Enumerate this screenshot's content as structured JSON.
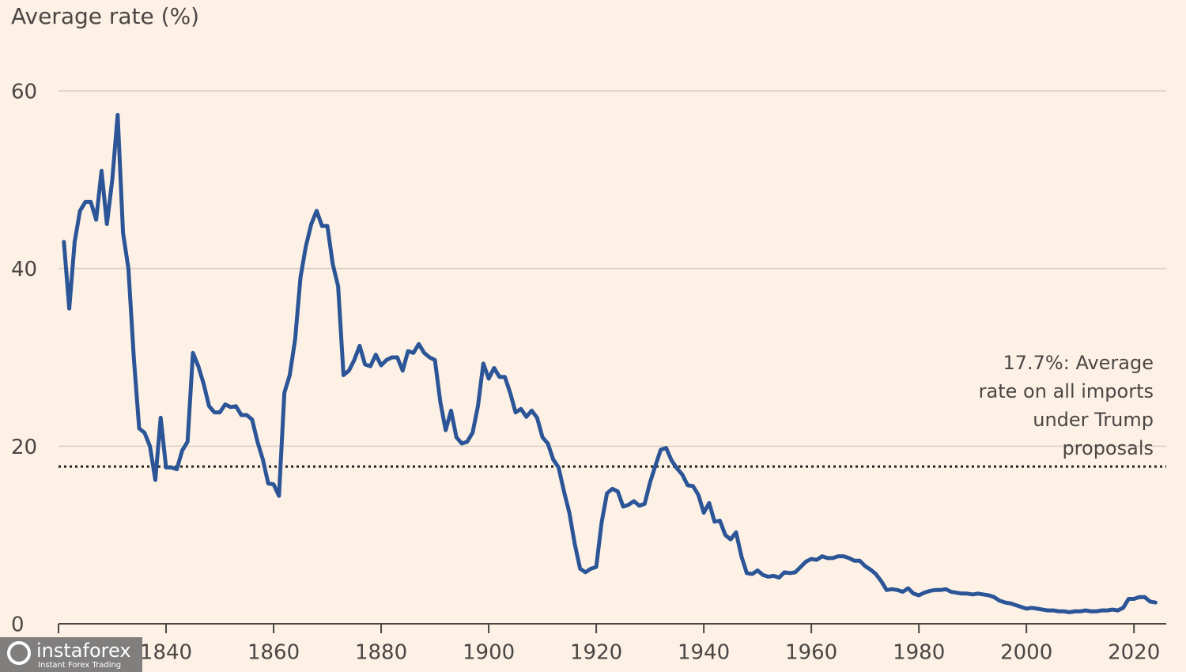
{
  "chart_data": {
    "type": "line",
    "title": "Average rate (%)",
    "x": [
      1821,
      1822,
      1823,
      1824,
      1825,
      1826,
      1827,
      1828,
      1829,
      1830,
      1831,
      1832,
      1833,
      1834,
      1835,
      1836,
      1837,
      1838,
      1839,
      1840,
      1841,
      1842,
      1843,
      1844,
      1845,
      1846,
      1847,
      1848,
      1849,
      1850,
      1851,
      1852,
      1853,
      1854,
      1855,
      1856,
      1857,
      1858,
      1859,
      1860,
      1861,
      1862,
      1863,
      1864,
      1865,
      1866,
      1867,
      1868,
      1869,
      1870,
      1871,
      1872,
      1873,
      1874,
      1875,
      1876,
      1877,
      1878,
      1879,
      1880,
      1881,
      1882,
      1883,
      1884,
      1885,
      1886,
      1887,
      1888,
      1889,
      1890,
      1891,
      1892,
      1893,
      1894,
      1895,
      1896,
      1897,
      1898,
      1899,
      1900,
      1901,
      1902,
      1903,
      1904,
      1905,
      1906,
      1907,
      1908,
      1909,
      1910,
      1911,
      1912,
      1913,
      1914,
      1915,
      1916,
      1917,
      1918,
      1919,
      1920,
      1921,
      1922,
      1923,
      1924,
      1925,
      1926,
      1927,
      1928,
      1929,
      1930,
      1931,
      1932,
      1933,
      1934,
      1935,
      1936,
      1937,
      1938,
      1939,
      1940,
      1941,
      1942,
      1943,
      1944,
      1945,
      1946,
      1947,
      1948,
      1949,
      1950,
      1951,
      1952,
      1953,
      1954,
      1955,
      1956,
      1957,
      1958,
      1959,
      1960,
      1961,
      1962,
      1963,
      1964,
      1965,
      1966,
      1967,
      1968,
      1969,
      1970,
      1971,
      1972,
      1973,
      1974,
      1975,
      1976,
      1977,
      1978,
      1979,
      1980,
      1981,
      1982,
      1983,
      1984,
      1985,
      1986,
      1987,
      1988,
      1989,
      1990,
      1991,
      1992,
      1993,
      1994,
      1995,
      1996,
      1997,
      1998,
      1999,
      2000,
      2001,
      2002,
      2003,
      2004,
      2005,
      2006,
      2007,
      2008,
      2009,
      2010,
      2011,
      2012,
      2013,
      2014,
      2015,
      2016,
      2017,
      2018,
      2019,
      2020,
      2021,
      2022,
      2023,
      2024
    ],
    "series": [
      {
        "color": "#2b5597",
        "values": [
          43,
          35.5,
          43,
          46.5,
          47.5,
          47.5,
          45.5,
          51,
          45,
          50,
          57.3,
          44,
          40,
          30,
          22,
          21.5,
          20,
          16.2,
          23.2,
          17.6,
          17.6,
          17.4,
          19.5,
          20.5,
          30.5,
          29,
          27,
          24.5,
          23.8,
          23.8,
          24.7,
          24.4,
          24.5,
          23.5,
          23.5,
          23,
          20.5,
          18.5,
          15.8,
          15.7,
          14.4,
          26,
          28,
          32,
          39,
          42.5,
          45,
          46.5,
          44.8,
          44.8,
          40.5,
          38,
          28,
          28.5,
          29.7,
          31.3,
          29.2,
          29,
          30.3,
          29.1,
          29.7,
          30,
          30,
          28.5,
          30.7,
          30.5,
          31.5,
          30.5,
          30,
          29.7,
          25,
          21.8,
          24,
          21,
          20.3,
          20.5,
          21.5,
          24.5,
          29.3,
          27.6,
          28.8,
          27.8,
          27.8,
          26,
          23.8,
          24.2,
          23.3,
          24,
          23.2,
          21,
          20.3,
          18.5,
          17.6,
          14.9,
          12.5,
          9,
          6.2,
          5.8,
          6.2,
          6.4,
          11.4,
          14.7,
          15.2,
          14.9,
          13.2,
          13.4,
          13.8,
          13.3,
          13.5,
          15.9,
          17.8,
          19.6,
          19.8,
          18.4,
          17.5,
          16.8,
          15.6,
          15.5,
          14.5,
          12.5,
          13.6,
          11.5,
          11.6,
          10,
          9.5,
          10.3,
          7.6,
          5.7,
          5.6,
          6,
          5.5,
          5.3,
          5.4,
          5.2,
          5.8,
          5.7,
          5.8,
          6.4,
          7,
          7.3,
          7.2,
          7.6,
          7.4,
          7.4,
          7.6,
          7.6,
          7.4,
          7.1,
          7.1,
          6.5,
          6.1,
          5.6,
          4.8,
          3.8,
          3.9,
          3.8,
          3.6,
          4,
          3.4,
          3.2,
          3.5,
          3.7,
          3.8,
          3.8,
          3.9,
          3.6,
          3.5,
          3.4,
          3.4,
          3.3,
          3.4,
          3.3,
          3.2,
          3,
          2.6,
          2.4,
          2.3,
          2.1,
          1.9,
          1.7,
          1.8,
          1.7,
          1.6,
          1.5,
          1.5,
          1.4,
          1.4,
          1.3,
          1.4,
          1.4,
          1.5,
          1.4,
          1.4,
          1.5,
          1.5,
          1.6,
          1.5,
          1.8,
          2.8,
          2.8,
          3,
          3,
          2.5,
          2.4
        ]
      }
    ],
    "xlim": [
      1820,
      2026
    ],
    "xticks": [
      1840,
      1860,
      1880,
      1900,
      1920,
      1940,
      1960,
      1980,
      2000,
      2020
    ],
    "ylim": [
      0,
      60
    ],
    "yticks": [
      0,
      20,
      40,
      60
    ],
    "grid": true,
    "reference_line": {
      "value": 17.7,
      "label_lines": [
        "17.7%: Average",
        "rate on all imports",
        "under Trump",
        "proposals"
      ]
    }
  },
  "watermark": {
    "brand": "instaforex",
    "tagline": "Instant Forex Trading"
  }
}
